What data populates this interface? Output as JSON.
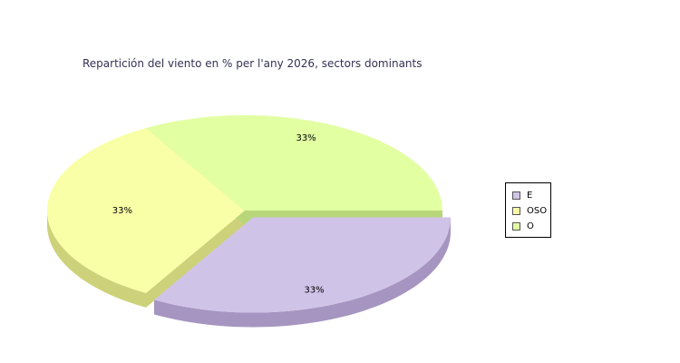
{
  "chart_data": {
    "type": "pie",
    "title": "Repartición del viento en % per l'any 2026, sectors dominants",
    "categories": [
      "E",
      "OSO",
      "O"
    ],
    "values": [
      33,
      33,
      33
    ],
    "data_labels": [
      "33%",
      "33%",
      "33%"
    ],
    "legend_position": "right",
    "colors": {
      "E": "#d0c3e8",
      "OSO": "#f9ffa6",
      "O": "#e2ffa2"
    },
    "side_colors": {
      "E": "#a595c0",
      "OSO": "#cdd27a",
      "O": "#b8d67a"
    },
    "exploded": [
      "E"
    ],
    "three_d": true
  }
}
